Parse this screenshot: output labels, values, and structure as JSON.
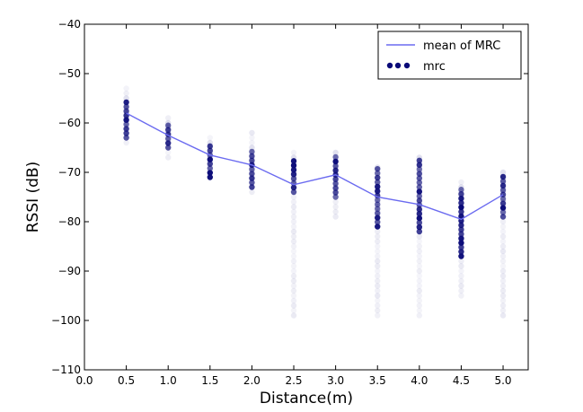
{
  "chart_data": {
    "type": "scatter",
    "xlabel": "Distance(m)",
    "ylabel": "RSSI (dB)",
    "xlim": [
      0.0,
      5.3
    ],
    "ylim": [
      -110,
      -40
    ],
    "xticks": [
      "0.0",
      "0.5",
      "1.0",
      "1.5",
      "2.0",
      "2.5",
      "3.0",
      "3.5",
      "4.0",
      "4.5",
      "5.0"
    ],
    "yticks": [
      "−40",
      "−50",
      "−60",
      "−70",
      "−80",
      "−90",
      "−100",
      "−110"
    ],
    "grid": false,
    "legend_position": "top-right",
    "series": [
      {
        "name": "mean of MRC",
        "type": "line",
        "color": "#6b6bf0",
        "x": [
          0.5,
          1.0,
          1.5,
          2.0,
          2.5,
          3.0,
          3.5,
          4.0,
          4.5,
          5.0
        ],
        "y": [
          -58,
          -62.5,
          -66.5,
          -68.5,
          -72.5,
          -70.5,
          -75,
          -76.5,
          -79.5,
          -74.5
        ]
      },
      {
        "name": "mrc",
        "type": "scatter",
        "color": "#0a0a78",
        "x": [
          0.5,
          1.0,
          1.5,
          2.0,
          2.5,
          3.0,
          3.5,
          4.0,
          4.5,
          5.0
        ],
        "y_ranges": [
          [
            -64,
            -53
          ],
          [
            -67,
            -59
          ],
          [
            -71,
            -63
          ],
          [
            -74,
            -62
          ],
          [
            -99,
            -66
          ],
          [
            -79,
            -66
          ],
          [
            -99,
            -69
          ],
          [
            -99,
            -67
          ],
          [
            -95,
            -72
          ],
          [
            -99,
            -70
          ]
        ],
        "dense_ranges": [
          [
            -63,
            -55
          ],
          [
            -65,
            -60
          ],
          [
            -71,
            -64
          ],
          [
            -73,
            -65
          ],
          [
            -74,
            -67
          ],
          [
            -75,
            -66
          ],
          [
            -81,
            -69
          ],
          [
            -82,
            -67
          ],
          [
            -87,
            -73
          ],
          [
            -79,
            -70
          ]
        ]
      }
    ]
  }
}
